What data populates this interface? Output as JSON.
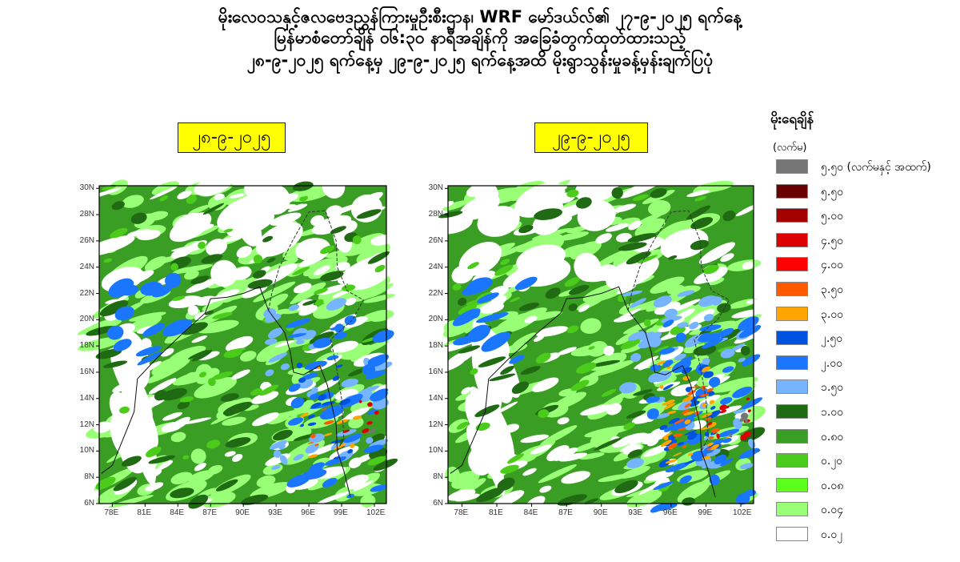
{
  "title": {
    "line1": "မိုးလေဝသနှင့်ဇလဗေဒညွှန်ကြားမှုဦးစီးဌာန၊ WRF မော်ဒယ်လ်၏ ၂၇-၉-၂၀၂၅ ရက်နေ့",
    "line2": "မြန်မာစံတော်ချိန် ၀၆:၃၀ နာရီအချိန်ကို အခြေခံတွက်ထုတ်ထားသည့်",
    "line3": "၂၈-၉-၂၀၂၅ ရက်နေ့မှ ၂၉-၉-၂၀၂၅ ရက်နေ့အထိ မိုးရွာသွန်းမှုခန့်မှန်းချက်ပြပုံ"
  },
  "panels": [
    {
      "date": "၂၈-၉-၂၀၂၅"
    },
    {
      "date": "၂၉-၉-၂၀၂၅"
    }
  ],
  "axes": {
    "lat_ticks": [
      "30N",
      "28N",
      "26N",
      "24N",
      "22N",
      "20N",
      "18N",
      "16N",
      "14N",
      "12N",
      "10N",
      "8N",
      "6N"
    ],
    "lat_values": [
      30,
      28,
      26,
      24,
      22,
      20,
      18,
      16,
      14,
      12,
      10,
      8,
      6
    ],
    "lon_ticks": [
      "78E",
      "81E",
      "84E",
      "87E",
      "90E",
      "93E",
      "96E",
      "99E",
      "102E"
    ],
    "lon_values": [
      78,
      81,
      84,
      87,
      90,
      93,
      96,
      99,
      102
    ]
  },
  "legend": {
    "title": "မိုးရေချိန်",
    "unit": "(လက်မ)",
    "items": [
      {
        "label": "၅.၅၀ (လက်မနှင့် အထက်)",
        "color": "#767676"
      },
      {
        "label": "၅.၅၀",
        "color": "#6b0000"
      },
      {
        "label": "၅.၀၀",
        "color": "#a50000"
      },
      {
        "label": "၄.၅၀",
        "color": "#dd0000"
      },
      {
        "label": "၄.၀၀",
        "color": "#ff0000"
      },
      {
        "label": "၃.၅၀",
        "color": "#ff5a00"
      },
      {
        "label": "၃.၀၀",
        "color": "#ffa500"
      },
      {
        "label": "၂.၅၀",
        "color": "#0052e0"
      },
      {
        "label": "၂.၀၀",
        "color": "#1a75ff"
      },
      {
        "label": "၁.၅၀",
        "color": "#77b4ff"
      },
      {
        "label": "၁.၀၀",
        "color": "#1f6a12"
      },
      {
        "label": "၀.၈၀",
        "color": "#3a9e24"
      },
      {
        "label": "၀.၂၀",
        "color": "#4ccc1a"
      },
      {
        "label": "၀.၀၈",
        "color": "#5cff1a"
      },
      {
        "label": "၀.၀၄",
        "color": "#99ff77"
      },
      {
        "label": "၀.၀၂",
        "color": "#ffffff"
      }
    ]
  }
}
